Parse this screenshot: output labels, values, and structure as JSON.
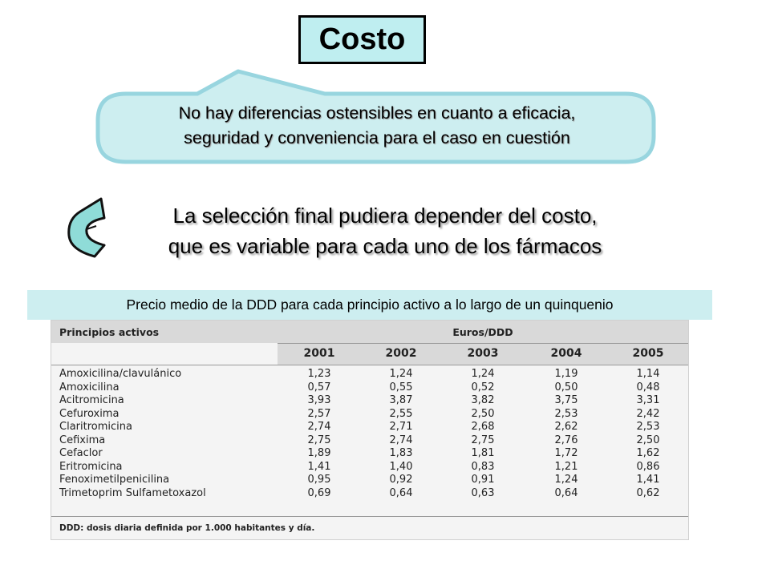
{
  "title": "Costo",
  "bubble": {
    "line1": "No hay diferencias ostensibles en cuanto a eficacia,",
    "line2": "seguridad y conveniencia para el caso en cuestión"
  },
  "main_text": {
    "line1": "La selección final pudiera depender del costo,",
    "line2": "que es variable para cada uno de los fármacos"
  },
  "caption": "Precio medio de la DDD para cada principio activo a lo largo de un quinquenio",
  "table": {
    "column_header": "Principios activos",
    "unit_header": "Euros/DDD",
    "years": [
      "2001",
      "2002",
      "2003",
      "2004",
      "2005"
    ],
    "rows": [
      {
        "name": "Amoxicilina/clavulánico",
        "values": [
          "1,23",
          "1,24",
          "1,24",
          "1,19",
          "1,14"
        ]
      },
      {
        "name": "Amoxicilina",
        "values": [
          "0,57",
          "0,55",
          "0,52",
          "0,50",
          "0,48"
        ]
      },
      {
        "name": "Acitromicina",
        "values": [
          "3,93",
          "3,87",
          "3,82",
          "3,75",
          "3,31"
        ]
      },
      {
        "name": "Cefuroxima",
        "values": [
          "2,57",
          "2,55",
          "2,50",
          "2,53",
          "2,42"
        ]
      },
      {
        "name": "Claritromicina",
        "values": [
          "2,74",
          "2,71",
          "2,68",
          "2,62",
          "2,53"
        ]
      },
      {
        "name": "Cefixima",
        "values": [
          "2,75",
          "2,74",
          "2,75",
          "2,76",
          "2,50"
        ]
      },
      {
        "name": "Cefaclor",
        "values": [
          "1,89",
          "1,83",
          "1,81",
          "1,72",
          "1,62"
        ]
      },
      {
        "name": "Eritromicina",
        "values": [
          "1,41",
          "1,40",
          "0,83",
          "1,21",
          "0,86"
        ]
      },
      {
        "name": "Fenoximetilpenicilina",
        "values": [
          "0,95",
          "0,92",
          "0,91",
          "1,24",
          "1,41"
        ]
      },
      {
        "name": "Trimetoprim Sulfametoxazol",
        "values": [
          "0,69",
          "0,64",
          "0,63",
          "0,64",
          "0,62"
        ]
      }
    ],
    "footnote": "DDD: dosis diaria definida por 1.000 habitantes y día."
  },
  "colors": {
    "title_fill": "#bfeef0",
    "bubble_fill": "#cdeef0",
    "bubble_border": "#98d5df",
    "question_mark": "#8fdcd8"
  }
}
